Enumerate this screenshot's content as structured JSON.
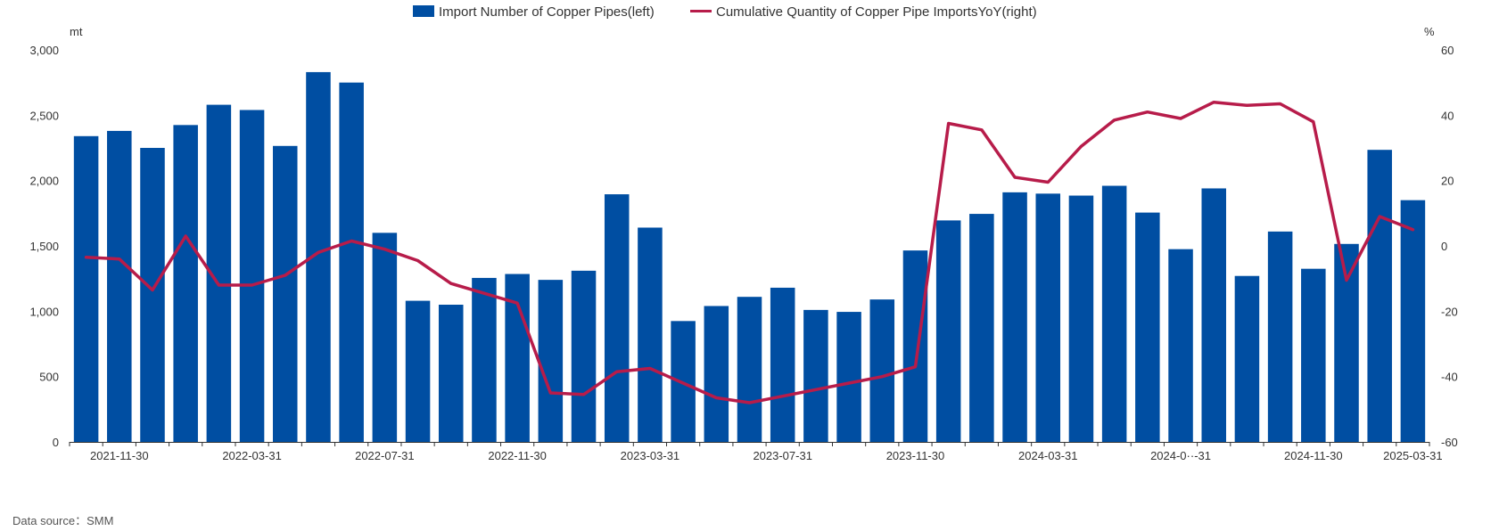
{
  "colors": {
    "bar": "#004ea2",
    "line": "#b71c4a",
    "axis": "#333333"
  },
  "footer": {
    "source": "Data source：SMM"
  },
  "chart_data": {
    "type": "bar",
    "title": "",
    "left_unit": "mt",
    "right_unit": "%",
    "left_ylim": [
      0,
      3000
    ],
    "right_ylim": [
      -60,
      60
    ],
    "left_ticks": [
      "0",
      "500",
      "1,000",
      "1,500",
      "2,000",
      "2,500",
      "3,000"
    ],
    "right_ticks": [
      "-60",
      "-40",
      "-20",
      "0",
      "20",
      "40",
      "60"
    ],
    "x_tick_labels": [
      {
        "index": 1,
        "label": "2021-11-30"
      },
      {
        "index": 5,
        "label": "2022-03-31"
      },
      {
        "index": 9,
        "label": "2022-07-31"
      },
      {
        "index": 13,
        "label": "2022-11-30"
      },
      {
        "index": 17,
        "label": "2023-03-31"
      },
      {
        "index": 21,
        "label": "2023-07-31"
      },
      {
        "index": 25,
        "label": "2023-11-30"
      },
      {
        "index": 29,
        "label": "2024-03-31"
      },
      {
        "index": 33,
        "label": "2024-0··-31"
      },
      {
        "index": 37,
        "label": "2024-11-30"
      },
      {
        "index": 40,
        "label": "2025-03-31"
      }
    ],
    "grid": false,
    "legend_position": "top-center",
    "series": [
      {
        "name": "Import Number of Copper Pipes(left)",
        "type": "bar",
        "axis": "left",
        "values": [
          2340,
          2380,
          2250,
          2425,
          2580,
          2540,
          2265,
          2830,
          2750,
          1600,
          1080,
          1050,
          1255,
          1285,
          1240,
          1310,
          1895,
          1640,
          925,
          1040,
          1110,
          1180,
          1010,
          995,
          1090,
          1465,
          1695,
          1745,
          1910,
          1900,
          1885,
          1960,
          1755,
          1475,
          1940,
          1270,
          1610,
          1325,
          1515,
          2235,
          1850
        ]
      },
      {
        "name": "Cumulative Quantity of Copper Pipe ImportsYoY(right)",
        "type": "line",
        "axis": "right",
        "values": [
          -3.5,
          -4,
          -13.5,
          3,
          -12,
          -12,
          -9,
          -2,
          1.5,
          -1,
          -4.5,
          -11.5,
          -14.5,
          -17.5,
          -45,
          -45.5,
          -38.5,
          -37.5,
          -42,
          -46.5,
          -48,
          -46,
          -44,
          -42,
          -40,
          -37,
          37.5,
          35.5,
          21,
          19.5,
          30.5,
          38.5,
          41,
          39,
          44,
          43,
          43.5,
          38,
          -10.5,
          9,
          5
        ]
      }
    ]
  }
}
